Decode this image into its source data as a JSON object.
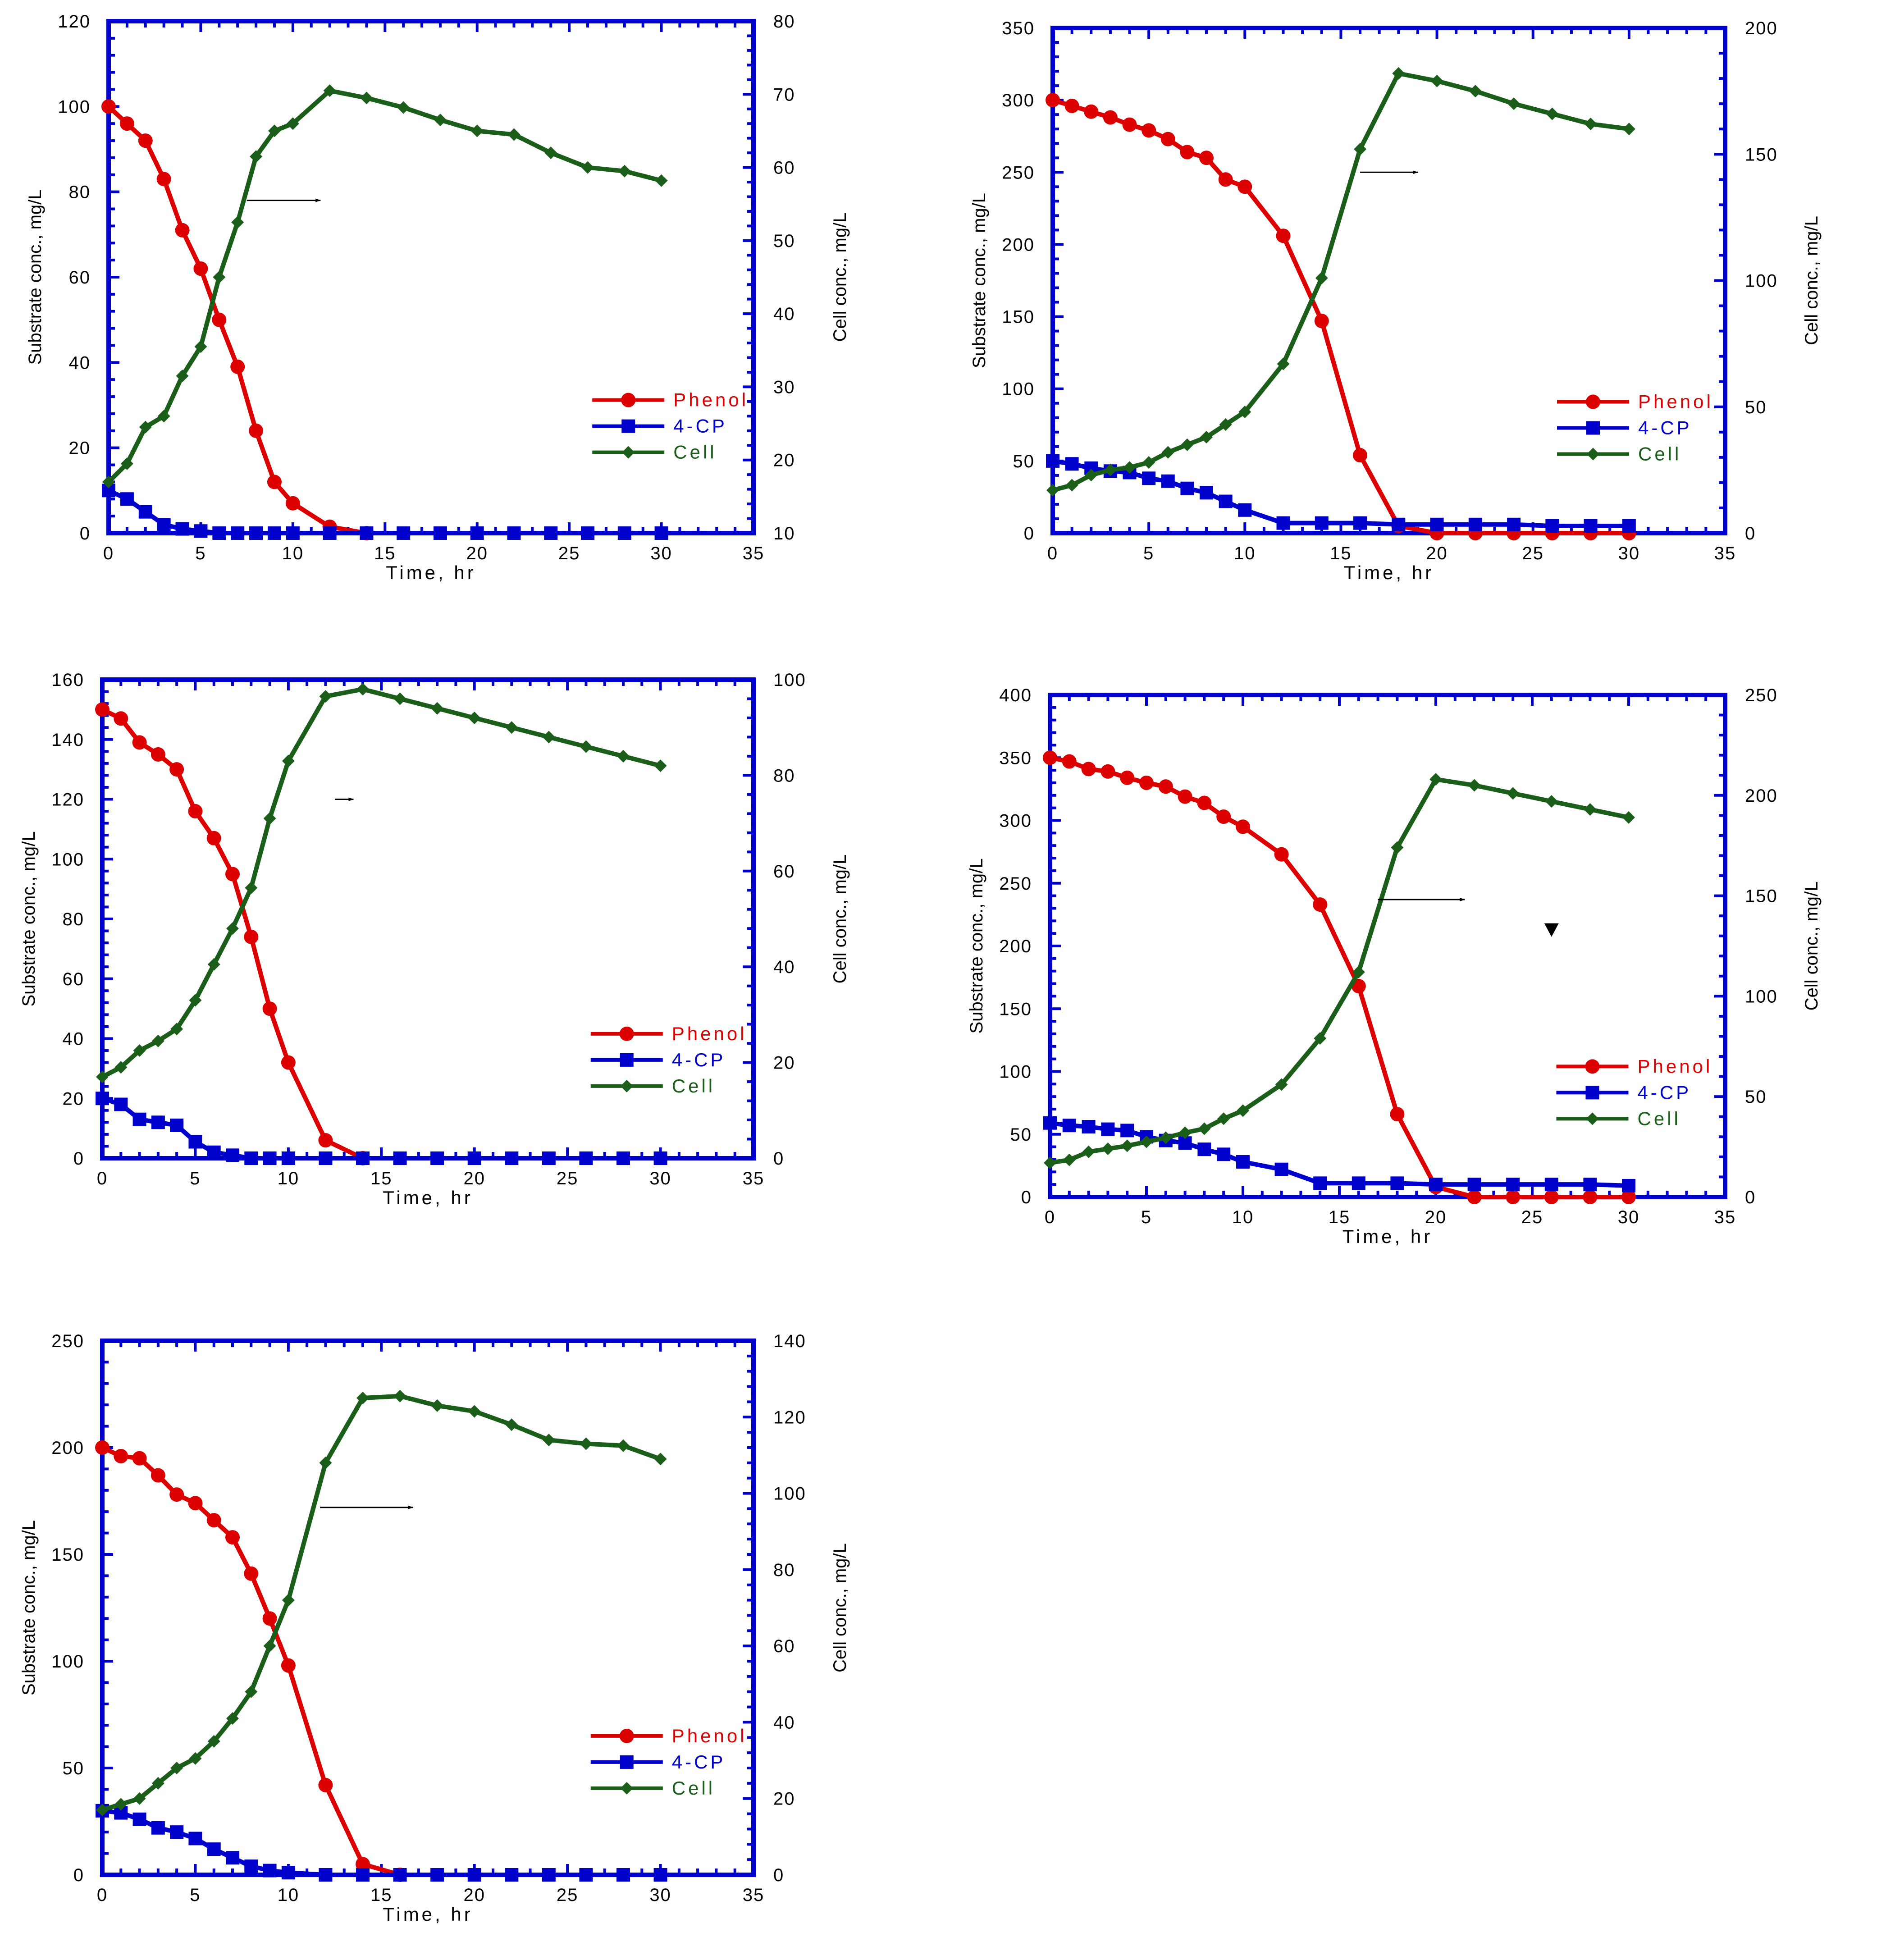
{
  "colors": {
    "frame": "#0000cc",
    "phenol": "#dd0000",
    "cp": "#0000cc",
    "cell": "#1a5e1a",
    "arrow": "#000000"
  },
  "chart_data": [
    {
      "type": "line",
      "panel": "top-left",
      "xlabel": "Time, hr",
      "ylabel": "Substrate conc., mg/L",
      "y2label": "Cell conc., mg/L",
      "xlim": [
        0,
        35
      ],
      "xticks": [
        "0",
        "5",
        "10",
        "15",
        "20",
        "25",
        "30",
        "35"
      ],
      "ylim": [
        0,
        120
      ],
      "yticks": [
        "0",
        "20",
        "40",
        "60",
        "80",
        "100",
        "120"
      ],
      "y2lim": [
        10,
        80
      ],
      "y2ticks": [
        "10",
        "20",
        "30",
        "40",
        "50",
        "60",
        "70",
        "80"
      ],
      "legend": [
        "Phenol",
        "4-CP",
        "Cell"
      ],
      "series": [
        {
          "name": "Phenol",
          "axis": "left",
          "marker": "circle",
          "x": [
            0,
            1,
            2,
            3,
            4,
            5,
            6,
            7,
            8,
            9,
            10,
            12,
            14
          ],
          "y": [
            100,
            96,
            92,
            83,
            71,
            62,
            50,
            39,
            24,
            12,
            7,
            1.5,
            0
          ]
        },
        {
          "name": "4-CP",
          "axis": "left",
          "marker": "square",
          "x": [
            0,
            1,
            2,
            3,
            4,
            5,
            6,
            7,
            8,
            9,
            10,
            12,
            14,
            16,
            18,
            20,
            22,
            24,
            26,
            28,
            30
          ],
          "y": [
            10,
            8,
            5,
            2,
            1,
            0.5,
            0,
            0,
            0,
            0,
            0,
            0,
            0,
            0,
            0,
            0,
            0,
            0,
            0,
            0,
            0
          ]
        },
        {
          "name": "Cell",
          "axis": "right",
          "marker": "diamond",
          "x": [
            0,
            1,
            2,
            3,
            4,
            5,
            6,
            7,
            8,
            9,
            10,
            12,
            14,
            16,
            18,
            20,
            22,
            24,
            26,
            28,
            30
          ],
          "y": [
            17,
            19.5,
            24.5,
            26,
            31.5,
            35.5,
            45,
            52.5,
            61.5,
            65,
            66,
            70.5,
            69.5,
            68.2,
            66.5,
            65,
            64.5,
            62,
            60,
            59.5,
            58.2
          ]
        }
      ],
      "annotations": [
        {
          "type": "arrow",
          "x1": 7.5,
          "y1": 78,
          "x2": 11.5,
          "y2": 78,
          "axis": "left"
        }
      ]
    },
    {
      "type": "line",
      "panel": "top-right",
      "xlabel": "Time, hr",
      "ylabel": "Substrate conc., mg/L",
      "y2label": "Cell conc., mg/L",
      "xlim": [
        0,
        35
      ],
      "xticks": [
        "0",
        "5",
        "10",
        "15",
        "20",
        "25",
        "30",
        "35"
      ],
      "ylim": [
        0,
        350
      ],
      "yticks": [
        "0",
        "50",
        "100",
        "150",
        "200",
        "250",
        "300",
        "350"
      ],
      "y2lim": [
        0,
        200
      ],
      "y2ticks": [
        "0",
        "50",
        "100",
        "150",
        "200"
      ],
      "legend": [
        "Phenol",
        "4-CP",
        "Cell"
      ],
      "series": [
        {
          "name": "Phenol",
          "axis": "left",
          "marker": "circle",
          "x": [
            0,
            1,
            2,
            3,
            4,
            5,
            6,
            7,
            8,
            9,
            10,
            12,
            14,
            16,
            18,
            20,
            22,
            24,
            26,
            28,
            30
          ],
          "y": [
            300,
            296,
            292,
            288,
            283,
            279,
            273,
            264,
            260,
            245,
            240,
            206,
            147,
            54,
            5,
            0,
            0,
            0,
            0,
            0,
            0
          ]
        },
        {
          "name": "4-CP",
          "axis": "left",
          "marker": "square",
          "x": [
            0,
            1,
            2,
            3,
            4,
            5,
            6,
            7,
            8,
            9,
            10,
            12,
            14,
            16,
            18,
            20,
            22,
            24,
            26,
            28,
            30
          ],
          "y": [
            50,
            48,
            45,
            43,
            42,
            38,
            36,
            31,
            28,
            22,
            16,
            7,
            7,
            7,
            6,
            6,
            6,
            6,
            5,
            5,
            5
          ]
        },
        {
          "name": "Cell",
          "axis": "right",
          "marker": "diamond",
          "x": [
            0,
            1,
            2,
            3,
            4,
            5,
            6,
            7,
            8,
            9,
            10,
            12,
            14,
            16,
            18,
            20,
            22,
            24,
            26,
            28,
            30
          ],
          "y": [
            17,
            19,
            23,
            25,
            26,
            28,
            32,
            35,
            38,
            43,
            48,
            67,
            101,
            152,
            182,
            179,
            175,
            170,
            166,
            162,
            160
          ]
        }
      ],
      "annotations": [
        {
          "type": "arrow",
          "x1": 16,
          "y1": 250,
          "x2": 19,
          "y2": 250,
          "axis": "left"
        }
      ]
    },
    {
      "type": "line",
      "panel": "middle-left",
      "xlabel": "Time, hr",
      "ylabel": "Substrate conc., mg/L",
      "y2label": "Cell conc., mg/L",
      "xlim": [
        0,
        35
      ],
      "xticks": [
        "0",
        "5",
        "10",
        "15",
        "20",
        "25",
        "30",
        "35"
      ],
      "ylim": [
        0,
        160
      ],
      "yticks": [
        "0",
        "20",
        "40",
        "60",
        "80",
        "100",
        "120",
        "140",
        "160"
      ],
      "y2lim": [
        0,
        100
      ],
      "y2ticks": [
        "0",
        "20",
        "40",
        "60",
        "80",
        "100"
      ],
      "legend": [
        "Phenol",
        "4-CP",
        "Cell"
      ],
      "series": [
        {
          "name": "Phenol",
          "axis": "left",
          "marker": "circle",
          "x": [
            0,
            1,
            2,
            3,
            4,
            5,
            6,
            7,
            8,
            9,
            10,
            12,
            14
          ],
          "y": [
            150,
            147,
            139,
            135,
            130,
            116,
            107,
            95,
            74,
            50,
            32,
            6,
            0
          ]
        },
        {
          "name": "4-CP",
          "axis": "left",
          "marker": "square",
          "x": [
            0,
            1,
            2,
            3,
            4,
            5,
            6,
            7,
            8,
            9,
            10,
            12,
            14,
            16,
            18,
            20,
            22,
            24,
            26,
            28,
            30
          ],
          "y": [
            20,
            18,
            13,
            12,
            11,
            5.5,
            2,
            1,
            0,
            0,
            0,
            0,
            0,
            0,
            0,
            0,
            0,
            0,
            0,
            0,
            0
          ]
        },
        {
          "name": "Cell",
          "axis": "right",
          "marker": "diamond",
          "x": [
            0,
            1,
            2,
            3,
            4,
            5,
            6,
            7,
            8,
            9,
            10,
            12,
            14,
            16,
            18,
            20,
            22,
            24,
            26,
            28,
            30
          ],
          "y": [
            17,
            19,
            22.5,
            24.5,
            27,
            33,
            40.5,
            48,
            56.5,
            71,
            83,
            96.5,
            98,
            96,
            94,
            92,
            90,
            88,
            86,
            84,
            82
          ]
        }
      ],
      "annotations": [
        {
          "type": "arrow",
          "x1": 12.5,
          "y1": 120,
          "x2": 13.5,
          "y2": 120,
          "axis": "left"
        }
      ]
    },
    {
      "type": "line",
      "panel": "middle-right",
      "xlabel": "Time, hr",
      "ylabel": "Substrate conc., mg/L",
      "y2label": "Cell conc., mg/L",
      "xlim": [
        0,
        35
      ],
      "xticks": [
        "0",
        "5",
        "10",
        "15",
        "20",
        "25",
        "30",
        "35"
      ],
      "ylim": [
        0,
        400
      ],
      "yticks": [
        "0",
        "50",
        "100",
        "150",
        "200",
        "250",
        "300",
        "350",
        "400"
      ],
      "y2lim": [
        0,
        250
      ],
      "y2ticks": [
        "0",
        "50",
        "100",
        "150",
        "200",
        "250"
      ],
      "legend": [
        "Phenol",
        "4-CP",
        "Cell"
      ],
      "series": [
        {
          "name": "Phenol",
          "axis": "left",
          "marker": "circle",
          "x": [
            0,
            1,
            2,
            3,
            4,
            5,
            6,
            7,
            8,
            9,
            10,
            12,
            14,
            16,
            18,
            20,
            22,
            24,
            26,
            28,
            30
          ],
          "y": [
            350,
            347,
            341,
            339,
            334,
            330,
            327,
            319,
            314,
            303,
            295,
            273,
            233,
            168,
            66,
            8,
            0,
            0,
            0,
            0,
            0
          ]
        },
        {
          "name": "4-CP",
          "axis": "left",
          "marker": "square",
          "x": [
            0,
            1,
            2,
            3,
            4,
            5,
            6,
            7,
            8,
            9,
            10,
            12,
            14,
            16,
            18,
            20,
            22,
            24,
            26,
            28,
            30
          ],
          "y": [
            59,
            57,
            56,
            54,
            53,
            48,
            45,
            43,
            38,
            34,
            28,
            22,
            11,
            11,
            11,
            10,
            10,
            10,
            10,
            10,
            9
          ]
        },
        {
          "name": "Cell",
          "axis": "right",
          "marker": "diamond",
          "x": [
            0,
            1,
            2,
            3,
            4,
            5,
            6,
            7,
            8,
            9,
            10,
            12,
            14,
            16,
            18,
            20,
            22,
            24,
            26,
            28,
            30
          ],
          "y": [
            17,
            18.5,
            22.5,
            24,
            25.5,
            27.5,
            29.5,
            32,
            34,
            39,
            43,
            56,
            79,
            112,
            174,
            208,
            205,
            201,
            197,
            193,
            189
          ]
        }
      ],
      "annotations": [
        {
          "type": "arrow",
          "x1": 17,
          "y1": 237,
          "x2": 21.5,
          "y2": 237,
          "axis": "left"
        },
        {
          "type": "triangle-marker",
          "x": 26,
          "y": 213,
          "axis": "left"
        }
      ]
    },
    {
      "type": "line",
      "panel": "bottom-left",
      "xlabel": "Time, hr",
      "ylabel": "Substrate conc., mg/L",
      "y2label": "Cell conc., mg/L",
      "xlim": [
        0,
        35
      ],
      "xticks": [
        "0",
        "5",
        "10",
        "15",
        "20",
        "25",
        "30",
        "35"
      ],
      "ylim": [
        0,
        250
      ],
      "yticks": [
        "0",
        "50",
        "100",
        "150",
        "200",
        "250"
      ],
      "y2lim": [
        0,
        140
      ],
      "y2ticks": [
        "0",
        "20",
        "40",
        "60",
        "80",
        "100",
        "120",
        "140"
      ],
      "legend": [
        "Phenol",
        "4-CP",
        "Cell"
      ],
      "series": [
        {
          "name": "Phenol",
          "axis": "left",
          "marker": "circle",
          "x": [
            0,
            1,
            2,
            3,
            4,
            5,
            6,
            7,
            8,
            9,
            10,
            12,
            14,
            16
          ],
          "y": [
            200,
            196,
            195,
            187,
            178,
            174,
            166,
            158,
            141,
            120,
            98,
            42,
            5,
            0
          ]
        },
        {
          "name": "4-CP",
          "axis": "left",
          "marker": "square",
          "x": [
            0,
            1,
            2,
            3,
            4,
            5,
            6,
            7,
            8,
            9,
            10,
            12,
            14,
            16,
            18,
            20,
            22,
            24,
            26,
            28,
            30
          ],
          "y": [
            30,
            29,
            26,
            22,
            20,
            17,
            12,
            8,
            4,
            2,
            1,
            0,
            0,
            0,
            0,
            0,
            0,
            0,
            0,
            0,
            0
          ]
        },
        {
          "name": "Cell",
          "axis": "right",
          "marker": "diamond",
          "x": [
            0,
            1,
            2,
            3,
            4,
            5,
            6,
            7,
            8,
            9,
            10,
            12,
            14,
            16,
            18,
            20,
            22,
            24,
            26,
            28,
            30
          ],
          "y": [
            17,
            18.5,
            20,
            24,
            28,
            30.5,
            35,
            41,
            48,
            60,
            72,
            108,
            125,
            125.5,
            123,
            121.5,
            118,
            114,
            113,
            112.5,
            109
          ]
        }
      ],
      "annotations": [
        {
          "type": "arrow",
          "x1": 11.7,
          "y1": 172,
          "x2": 16.7,
          "y2": 172,
          "axis": "left"
        }
      ]
    }
  ]
}
